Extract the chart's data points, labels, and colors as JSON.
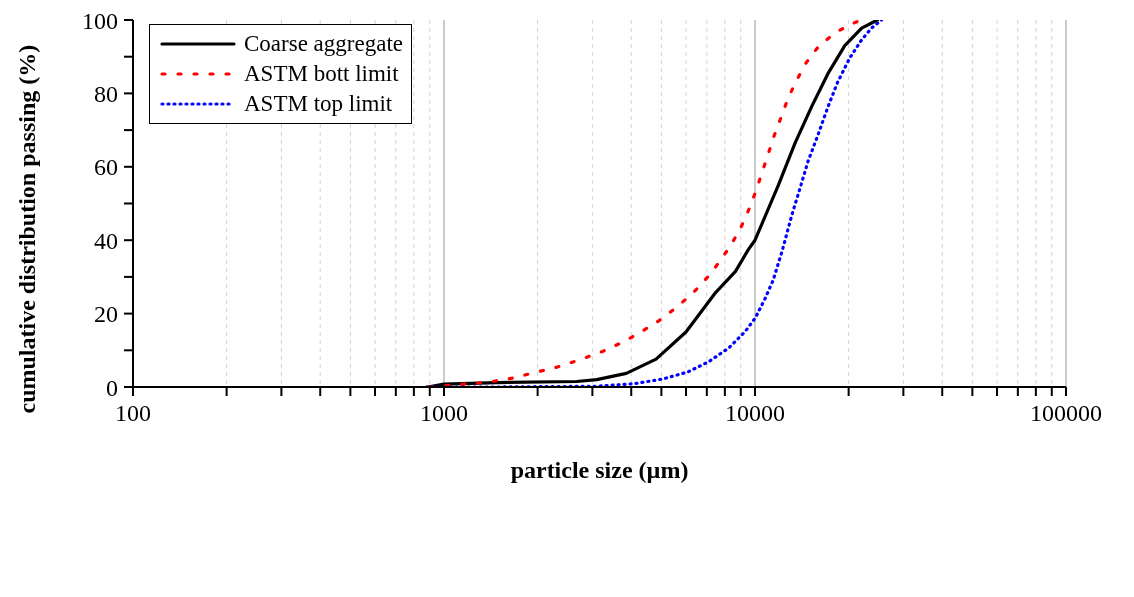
{
  "chart_data": {
    "type": "line",
    "xlabel": "particle size (µm)",
    "ylabel": "cumulative distribution passing (%)",
    "log": "x",
    "xlim": [
      100,
      100000
    ],
    "xticks": [
      100,
      {
        "value": 200,
        "label": null
      },
      {
        "value": 300,
        "label": null
      },
      {
        "value": 400,
        "label": null
      },
      {
        "value": 500,
        "label": null
      },
      {
        "value": 600,
        "label": null
      },
      {
        "value": 700,
        "label": null
      },
      {
        "value": 800,
        "label": null
      },
      {
        "value": 900,
        "label": null
      },
      1000,
      {
        "value": 2000,
        "label": null
      },
      {
        "value": 3000,
        "label": null
      },
      {
        "value": 4000,
        "label": null
      },
      {
        "value": 5000,
        "label": null
      },
      {
        "value": 6000,
        "label": null
      },
      {
        "value": 7000,
        "label": null
      },
      {
        "value": 8000,
        "label": null
      },
      {
        "value": 9000,
        "label": null
      },
      10000,
      {
        "value": 20000,
        "label": null
      },
      {
        "value": 30000,
        "label": null
      },
      {
        "value": 40000,
        "label": null
      },
      {
        "value": 50000,
        "label": null
      },
      {
        "value": 60000,
        "label": null
      },
      {
        "value": 70000,
        "label": null
      },
      {
        "value": 80000,
        "label": null
      },
      {
        "value": 90000,
        "label": null
      },
      100000
    ],
    "ylim": [
      0,
      100
    ],
    "yticks": [
      0,
      {
        "value": 10,
        "label": null
      },
      20,
      {
        "value": 30,
        "label": null
      },
      40,
      {
        "value": 50,
        "label": null
      },
      60,
      {
        "value": 70,
        "label": null
      },
      80,
      {
        "value": 90,
        "label": null
      },
      100
    ],
    "grid": "x",
    "legend": "top left",
    "marker": "none",
    "series": [
      {
        "name": "Coarse aggregate",
        "color": "#000000",
        "line_style": "solid",
        "x": [
          887,
          1000,
          1483,
          2673,
          3097,
          3857,
          4808,
          5998,
          7482,
          8655,
          9527,
          10000,
          11890,
          13460,
          15250,
          17140,
          19440,
          22030,
          24230,
          24770
        ],
        "values": [
          0,
          0.8,
          1.2,
          1.5,
          2,
          3.7,
          7.6,
          15,
          25.8,
          31.5,
          37.5,
          40,
          55,
          66.5,
          76.6,
          85.3,
          93,
          97.8,
          99.6,
          100
        ]
      },
      {
        "name": "ASTM bott limit",
        "color": "#ff0000",
        "line_style": "dashed",
        "x": [
          900,
          1377,
          1656,
          1948,
          2308,
          2731,
          3236,
          3776,
          4375,
          5027,
          5698,
          6412,
          7103,
          7762,
          8414,
          9057,
          9597,
          10100,
          10560,
          11040,
          11540,
          12140,
          12790,
          13560,
          14590,
          16040,
          18310,
          21070,
          22030
        ],
        "values": [
          0,
          1.3,
          2.4,
          3.9,
          5.4,
          7.4,
          9.7,
          12.3,
          15.4,
          18.6,
          22.3,
          26.2,
          30.3,
          34.6,
          39,
          43.9,
          48.7,
          53.7,
          58.7,
          63.6,
          68.6,
          73.6,
          78.8,
          83.3,
          88.3,
          92.9,
          96.8,
          99.4,
          100
        ]
      },
      {
        "name": "ASTM top limit",
        "color": "#0000ff",
        "line_style": "dotted",
        "x": [
          876,
          1483,
          3097,
          4093,
          5063,
          6083,
          7103,
          8224,
          9316,
          10020,
          10790,
          11450,
          12220,
          13150,
          13950,
          14810,
          15930,
          17140,
          18450,
          20150,
          22030,
          23710,
          25530
        ],
        "values": [
          0,
          0,
          0.2,
          0.9,
          2.2,
          4.1,
          6.9,
          10.6,
          15.2,
          18.8,
          24.2,
          29.2,
          37,
          47,
          54.1,
          61.5,
          68.6,
          76.2,
          83.1,
          89.6,
          94.6,
          97.8,
          100
        ]
      }
    ]
  }
}
